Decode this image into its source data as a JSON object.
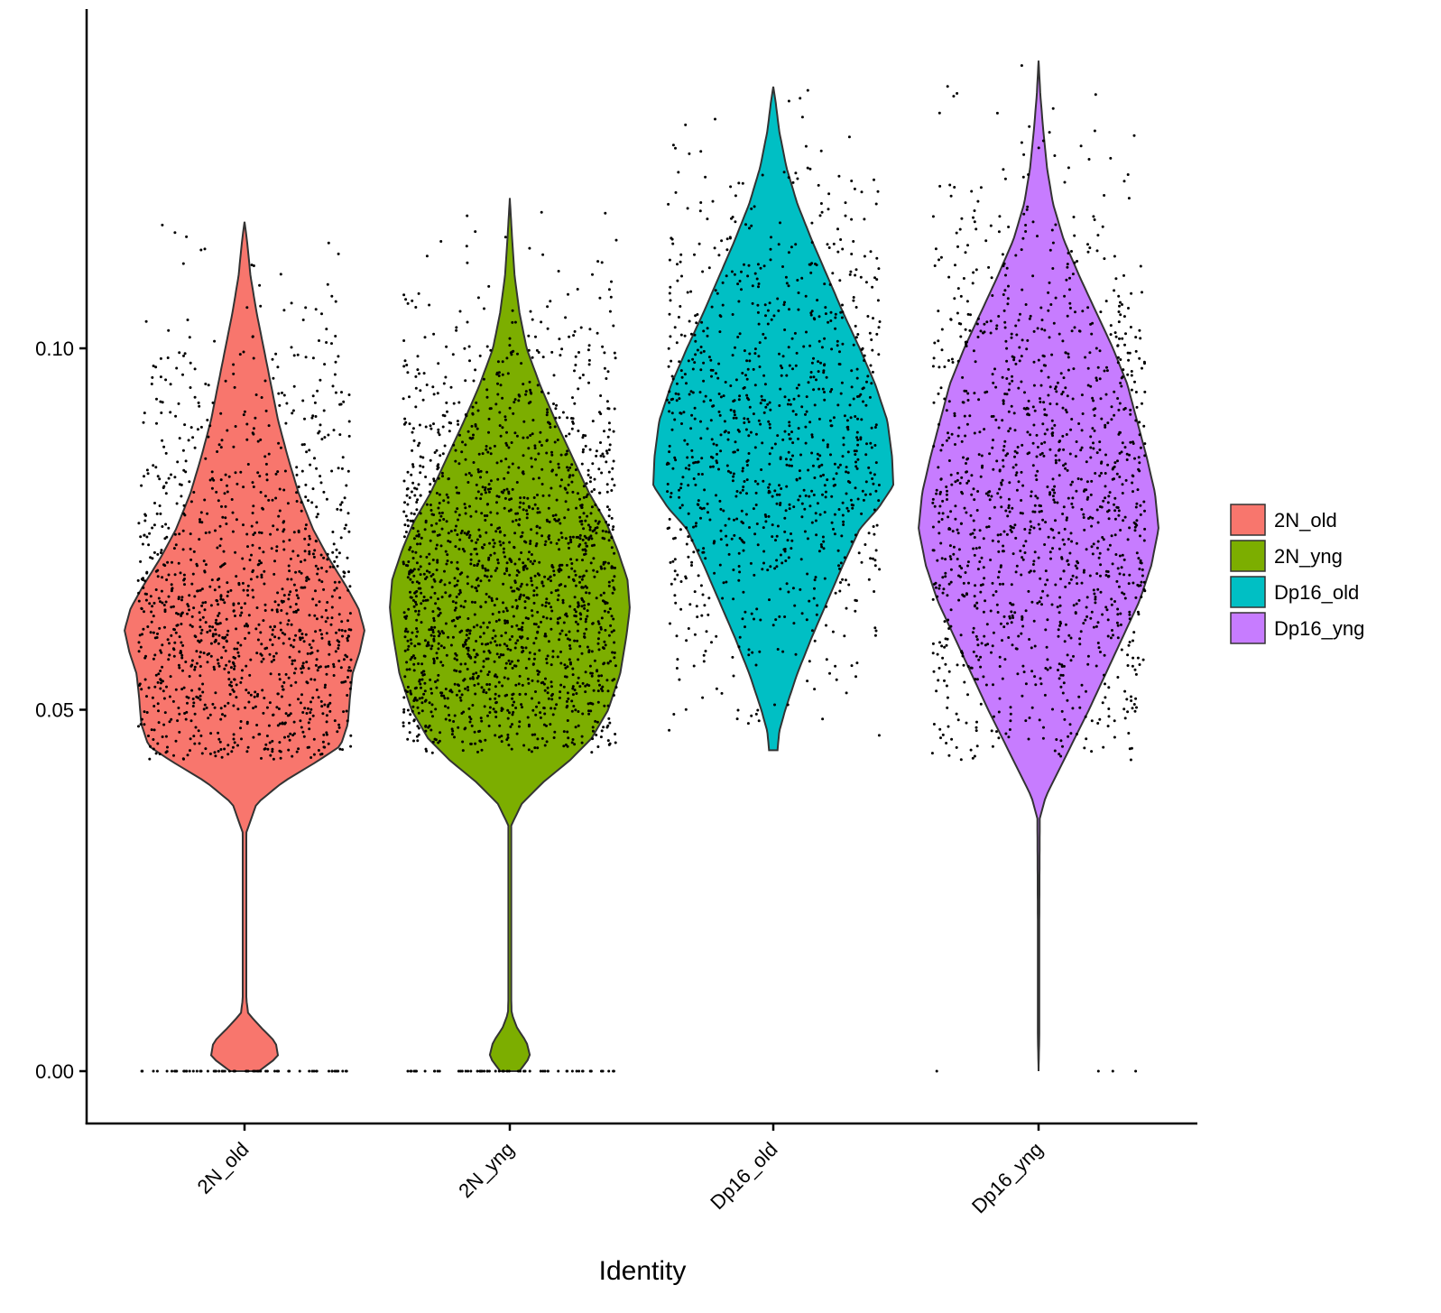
{
  "chart_data": {
    "type": "violin",
    "xlabel": "Identity",
    "ylabel": "",
    "ylim": [
      -0.007,
      0.147
    ],
    "yticks": [
      "0.00",
      "0.05",
      "0.10"
    ],
    "ytick_values": [
      0.0,
      0.05,
      0.1
    ],
    "grid": false,
    "legend_position": "right",
    "jitter_points": true,
    "categories": [
      "2N_old",
      "2N_yng",
      "Dp16_old",
      "Dp16_yng"
    ],
    "series": [
      {
        "name": "2N_old",
        "color": "#F8766D",
        "min": 0.0,
        "max": 0.1175,
        "median": 0.062,
        "profile": [
          [
            0.0,
            0.12
          ],
          [
            0.002,
            0.28
          ],
          [
            0.004,
            0.26
          ],
          [
            0.006,
            0.14
          ],
          [
            0.008,
            0.03
          ],
          [
            0.01,
            0.015
          ],
          [
            0.02,
            0.015
          ],
          [
            0.033,
            0.015
          ],
          [
            0.037,
            0.1
          ],
          [
            0.04,
            0.32
          ],
          [
            0.043,
            0.62
          ],
          [
            0.045,
            0.8
          ],
          [
            0.048,
            0.86
          ],
          [
            0.052,
            0.88
          ],
          [
            0.055,
            0.9
          ],
          [
            0.058,
            0.96
          ],
          [
            0.061,
            1.0
          ],
          [
            0.064,
            0.95
          ],
          [
            0.067,
            0.85
          ],
          [
            0.071,
            0.7
          ],
          [
            0.075,
            0.57
          ],
          [
            0.08,
            0.45
          ],
          [
            0.085,
            0.36
          ],
          [
            0.09,
            0.28
          ],
          [
            0.095,
            0.22
          ],
          [
            0.1,
            0.16
          ],
          [
            0.105,
            0.1
          ],
          [
            0.11,
            0.05
          ],
          [
            0.115,
            0.02
          ],
          [
            0.1175,
            0.0
          ]
        ],
        "point_range": [
          0.043,
          0.118
        ],
        "zero_points": true,
        "n_points": 1200
      },
      {
        "name": "2N_yng",
        "color": "#7CAE00",
        "min": 0.0,
        "max": 0.1208,
        "median": 0.064,
        "profile": [
          [
            0.0,
            0.08
          ],
          [
            0.002,
            0.17
          ],
          [
            0.004,
            0.14
          ],
          [
            0.006,
            0.06
          ],
          [
            0.008,
            0.015
          ],
          [
            0.01,
            0.012
          ],
          [
            0.02,
            0.012
          ],
          [
            0.034,
            0.012
          ],
          [
            0.037,
            0.1
          ],
          [
            0.04,
            0.28
          ],
          [
            0.043,
            0.5
          ],
          [
            0.046,
            0.68
          ],
          [
            0.05,
            0.82
          ],
          [
            0.055,
            0.92
          ],
          [
            0.06,
            0.97
          ],
          [
            0.064,
            1.0
          ],
          [
            0.068,
            0.98
          ],
          [
            0.072,
            0.9
          ],
          [
            0.076,
            0.8
          ],
          [
            0.08,
            0.66
          ],
          [
            0.085,
            0.52
          ],
          [
            0.09,
            0.38
          ],
          [
            0.095,
            0.25
          ],
          [
            0.1,
            0.14
          ],
          [
            0.105,
            0.08
          ],
          [
            0.11,
            0.04
          ],
          [
            0.115,
            0.02
          ],
          [
            0.1208,
            0.0
          ]
        ],
        "point_range": [
          0.044,
          0.121
        ],
        "zero_points": true,
        "n_points": 1800
      },
      {
        "name": "Dp16_old",
        "color": "#00BFC4",
        "min": 0.0444,
        "max": 0.1362,
        "median": 0.086,
        "profile": [
          [
            0.0444,
            0.035
          ],
          [
            0.047,
            0.05
          ],
          [
            0.05,
            0.1
          ],
          [
            0.055,
            0.2
          ],
          [
            0.06,
            0.32
          ],
          [
            0.065,
            0.45
          ],
          [
            0.07,
            0.58
          ],
          [
            0.075,
            0.72
          ],
          [
            0.078,
            0.88
          ],
          [
            0.081,
            1.0
          ],
          [
            0.085,
            0.99
          ],
          [
            0.09,
            0.95
          ],
          [
            0.095,
            0.85
          ],
          [
            0.1,
            0.72
          ],
          [
            0.105,
            0.58
          ],
          [
            0.11,
            0.45
          ],
          [
            0.115,
            0.32
          ],
          [
            0.12,
            0.2
          ],
          [
            0.125,
            0.11
          ],
          [
            0.13,
            0.05
          ],
          [
            0.134,
            0.02
          ],
          [
            0.1362,
            0.0
          ]
        ],
        "point_range": [
          0.044,
          0.137
        ],
        "zero_points": false,
        "n_points": 1000
      },
      {
        "name": "Dp16_yng",
        "color": "#C77CFF",
        "min": 0.0,
        "max": 0.1398,
        "median": 0.076,
        "profile": [
          [
            0.0,
            0.0
          ],
          [
            0.005,
            0.006
          ],
          [
            0.02,
            0.006
          ],
          [
            0.035,
            0.01
          ],
          [
            0.038,
            0.06
          ],
          [
            0.042,
            0.18
          ],
          [
            0.046,
            0.3
          ],
          [
            0.05,
            0.42
          ],
          [
            0.055,
            0.56
          ],
          [
            0.06,
            0.7
          ],
          [
            0.065,
            0.84
          ],
          [
            0.07,
            0.94
          ],
          [
            0.075,
            1.0
          ],
          [
            0.08,
            0.97
          ],
          [
            0.085,
            0.9
          ],
          [
            0.09,
            0.82
          ],
          [
            0.095,
            0.74
          ],
          [
            0.1,
            0.62
          ],
          [
            0.105,
            0.48
          ],
          [
            0.11,
            0.34
          ],
          [
            0.115,
            0.21
          ],
          [
            0.12,
            0.12
          ],
          [
            0.125,
            0.07
          ],
          [
            0.13,
            0.04
          ],
          [
            0.135,
            0.015
          ],
          [
            0.1398,
            0.0
          ]
        ],
        "point_range": [
          0.043,
          0.14
        ],
        "zero_points": true,
        "n_points": 1300
      }
    ]
  }
}
